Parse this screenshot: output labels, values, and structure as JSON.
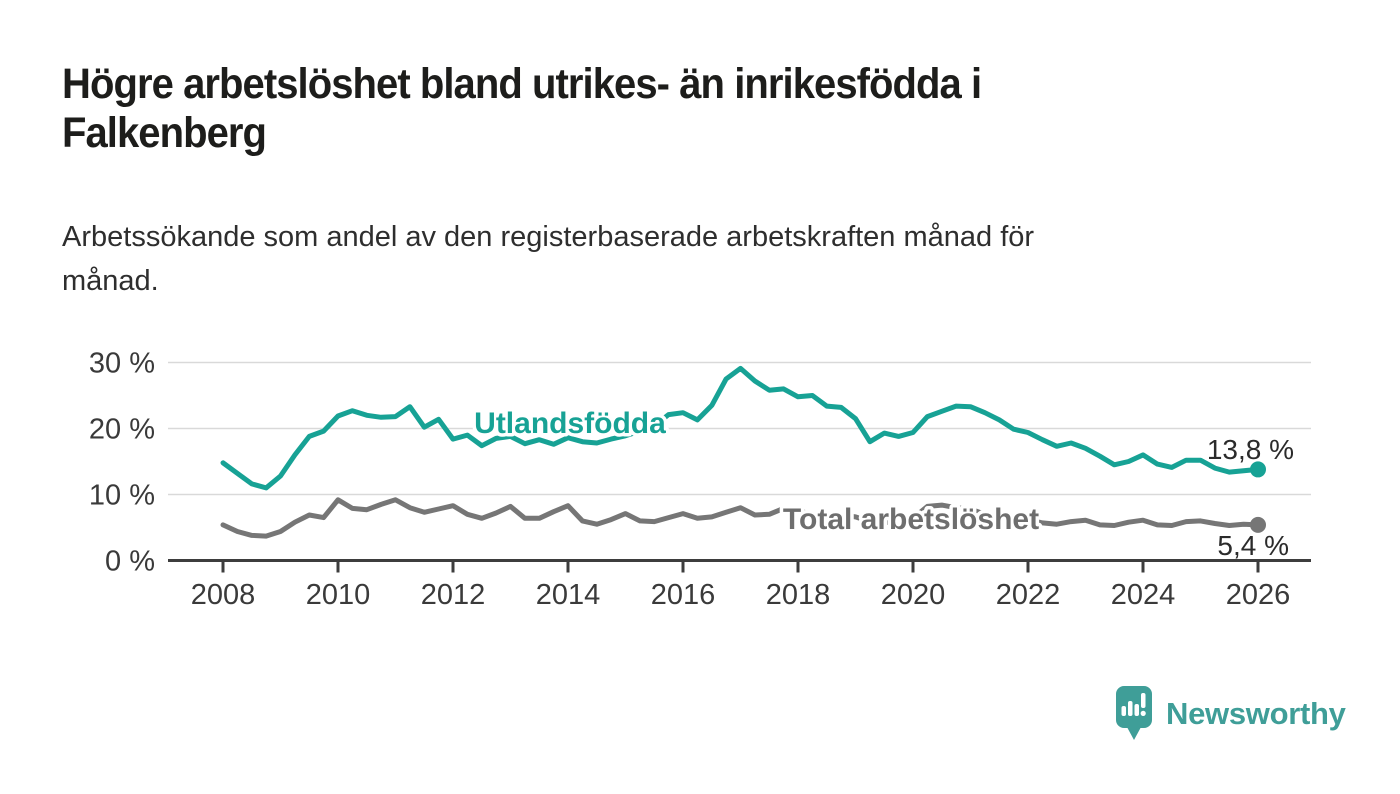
{
  "header": {
    "title_lines": [
      "Högre arbetslöshet bland utrikes- än inrikesfödda i",
      "Falkenberg"
    ],
    "subtitle_lines": [
      "Arbetssökande som andel av den registerbaserade arbetskraften månad för",
      "månad."
    ]
  },
  "colors": {
    "teal": "#17a295",
    "gray": "#767676",
    "label_gray": "#6e6e6e",
    "axis": "#3d3d3d",
    "grid": "#d9d9d9",
    "tick_text": "#3a3a3a",
    "value_text": "#2b2b2b",
    "logo_teal": "#3f9e98"
  },
  "chart_data": {
    "type": "line",
    "x_start": 2008,
    "x_step": 0.25,
    "x_end": 2026,
    "xlim": [
      2008,
      2026
    ],
    "ylim": [
      0,
      30
    ],
    "grid": true,
    "legend": "inline-labels",
    "x_ticks": [
      "2008",
      "2010",
      "2012",
      "2014",
      "2016",
      "2018",
      "2020",
      "2022",
      "2024",
      "2026"
    ],
    "y_ticks": [
      {
        "value": 0,
        "label": "0 %"
      },
      {
        "value": 10,
        "label": "10 %"
      },
      {
        "value": 20,
        "label": "20 %"
      },
      {
        "value": 30,
        "label": "30 %"
      }
    ],
    "series": [
      {
        "name": "Utlandsfödda",
        "end_label": "13,8 %",
        "end_value": 13.8,
        "values": [
          14.8,
          13.2,
          11.6,
          11.0,
          12.8,
          16.0,
          18.8,
          19.6,
          21.9,
          22.7,
          22.0,
          21.7,
          21.8,
          23.3,
          20.2,
          21.4,
          18.4,
          19.0,
          17.4,
          18.5,
          18.8,
          17.7,
          18.3,
          17.6,
          18.6,
          18.0,
          17.8,
          18.4,
          18.9,
          19.6,
          20.4,
          22.1,
          22.4,
          21.3,
          23.5,
          27.5,
          29.1,
          27.2,
          25.8,
          26.0,
          24.8,
          25.0,
          23.4,
          23.2,
          21.5,
          18.0,
          19.3,
          18.8,
          19.4,
          21.8,
          22.6,
          23.4,
          23.3,
          22.4,
          21.3,
          19.9,
          19.4,
          18.3,
          17.3,
          17.8,
          17.0,
          15.8,
          14.5,
          15.0,
          16.0,
          14.6,
          14.1,
          15.2,
          15.2,
          14.0,
          13.4,
          13.6,
          13.8
        ]
      },
      {
        "name": "Total arbetslöshet",
        "end_label": "5,4 %",
        "end_value": 5.4,
        "values": [
          5.4,
          4.4,
          3.8,
          3.7,
          4.4,
          5.8,
          6.9,
          6.5,
          9.2,
          7.9,
          7.7,
          8.5,
          9.2,
          8.0,
          7.3,
          7.8,
          8.3,
          7.0,
          6.4,
          7.2,
          8.2,
          6.4,
          6.4,
          7.4,
          8.3,
          6.0,
          5.5,
          6.2,
          7.1,
          6.0,
          5.9,
          6.5,
          7.1,
          6.4,
          6.6,
          7.3,
          8.0,
          6.9,
          7.0,
          7.9,
          7.7,
          6.8,
          6.4,
          6.9,
          6.6,
          5.9,
          5.7,
          6.1,
          6.4,
          8.2,
          8.4,
          8.0,
          7.8,
          7.0,
          6.5,
          6.3,
          6.2,
          5.7,
          5.5,
          5.9,
          6.1,
          5.4,
          5.3,
          5.8,
          6.1,
          5.4,
          5.3,
          5.9,
          6.0,
          5.6,
          5.3,
          5.5,
          5.4
        ]
      }
    ]
  },
  "footer": {
    "logo_text": "Newsworthy"
  }
}
